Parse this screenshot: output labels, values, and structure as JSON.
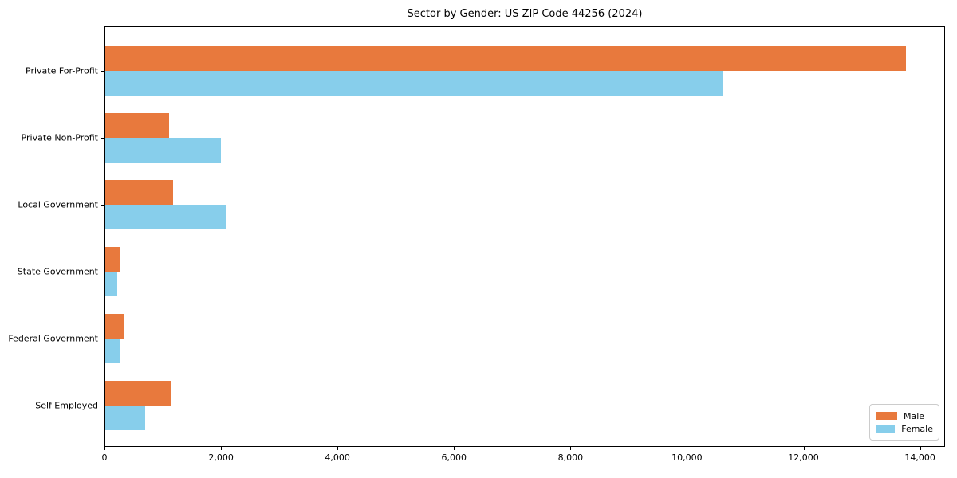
{
  "chart_data": {
    "type": "bar",
    "orientation": "horizontal",
    "title": "Sector by Gender: US ZIP Code 44256 (2024)",
    "categories": [
      "Private For-Profit",
      "Private Non-Profit",
      "Local Government",
      "State Government",
      "Federal Government",
      "Self-Employed"
    ],
    "series": [
      {
        "name": "Male",
        "color": "#e8793d",
        "values": [
          13750,
          1100,
          1160,
          265,
          330,
          1120
        ]
      },
      {
        "name": "Female",
        "color": "#87ceeb",
        "values": [
          10600,
          1980,
          2070,
          200,
          250,
          680
        ]
      }
    ],
    "xlabel": "",
    "ylabel": "",
    "xlim": [
      0,
      14430
    ],
    "xticks": [
      0,
      2000,
      4000,
      6000,
      8000,
      10000,
      12000,
      14000
    ],
    "xtick_labels": [
      "0",
      "2,000",
      "4,000",
      "6,000",
      "8,000",
      "10,000",
      "12,000",
      "14,000"
    ],
    "grid": false,
    "legend": {
      "position": "lower right"
    }
  }
}
